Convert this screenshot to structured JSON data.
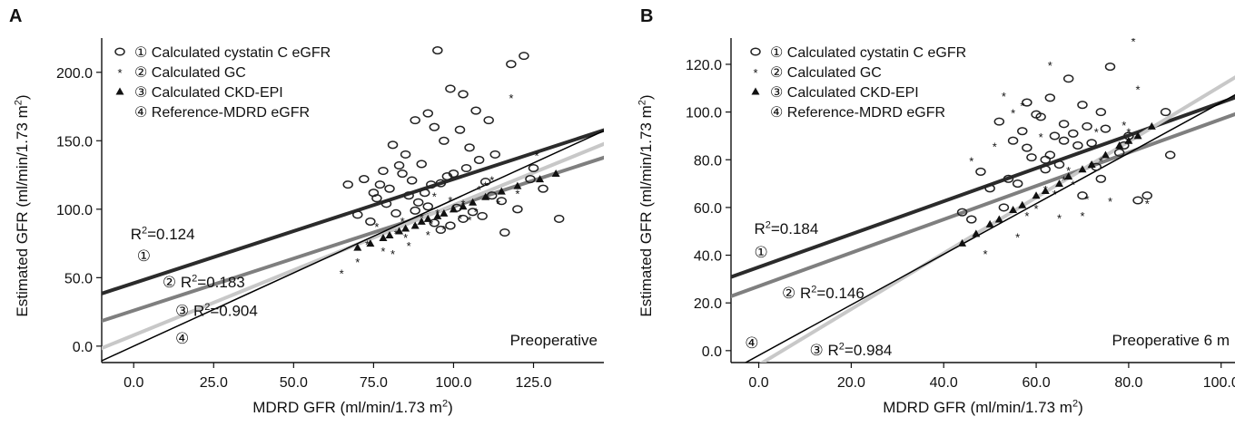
{
  "chart_data": [
    {
      "type": "scatter",
      "panel_label": "A",
      "title": "",
      "annotation": "Preoperative",
      "xlabel": "MDRD GFR (ml/min/1.73 m²)",
      "ylabel": "Estimated GFR (ml/min/1.73 m²)",
      "xlim": [
        -10,
        147
      ],
      "ylim": [
        -12,
        225
      ],
      "xticks": [
        0,
        25,
        50,
        75,
        100,
        125
      ],
      "xtick_labels": [
        "0.0",
        "25.0",
        "50.0",
        "75.0",
        "100.0",
        "125.0"
      ],
      "yticks": [
        0,
        50,
        100,
        150,
        200
      ],
      "ytick_labels": [
        "0.0",
        "50.0",
        "100.0",
        "150.0",
        "200.0"
      ],
      "legend": {
        "position": "top-left",
        "entries": [
          {
            "marker": "circle",
            "label": "① Calculated cystatin C eGFR"
          },
          {
            "marker": "star",
            "label": "② Calculated GC"
          },
          {
            "marker": "triangle",
            "label": "③ Calculated  CKD-EPI"
          },
          {
            "marker": "none",
            "label": "④ Reference-MDRD eGFR"
          }
        ]
      },
      "regression_lines": [
        {
          "id": "1",
          "intercept": 46,
          "slope": 0.76,
          "color": "#2b2b2b",
          "width": 4
        },
        {
          "id": "2",
          "intercept": 26,
          "slope": 0.76,
          "color": "#7f7f7f",
          "width": 4
        },
        {
          "id": "3",
          "intercept": 8,
          "slope": 0.95,
          "color": "#c8c8c8",
          "width": 4
        },
        {
          "id": "4",
          "intercept": 0,
          "slope": 1.07,
          "color": "#000000",
          "width": 1.5
        }
      ],
      "line_labels": [
        {
          "text": "R²=0.124",
          "x": -1,
          "y": 78
        },
        {
          "text": "①",
          "x": 1,
          "y": 62
        },
        {
          "text": "② R²=0.183",
          "x": 9,
          "y": 43
        },
        {
          "text": "③ R²=0.904",
          "x": 13,
          "y": 22
        },
        {
          "text": "④",
          "x": 13,
          "y": 2
        }
      ],
      "series": [
        {
          "name": "① Calculated cystatin C eGFR",
          "marker": "circle",
          "x": [
            95,
            118,
            122,
            103,
            99,
            88,
            92,
            107,
            81,
            94,
            102,
            111,
            85,
            90,
            97,
            105,
            78,
            83,
            87,
            93,
            100,
            113,
            125,
            133,
            67,
            72,
            76,
            80,
            84,
            86,
            89,
            91,
            96,
            98,
            101,
            104,
            106,
            109,
            112,
            115,
            120,
            75,
            79,
            82,
            94,
            99,
            103,
            96,
            92,
            88,
            70,
            74,
            77,
            110,
            116,
            108,
            124,
            128
          ],
          "y": [
            216,
            206,
            212,
            184,
            188,
            165,
            170,
            172,
            147,
            160,
            158,
            165,
            140,
            133,
            150,
            145,
            128,
            132,
            121,
            118,
            126,
            140,
            130,
            93,
            118,
            122,
            108,
            115,
            126,
            110,
            105,
            112,
            119,
            124,
            101,
            130,
            98,
            95,
            110,
            106,
            100,
            112,
            104,
            97,
            90,
            88,
            93,
            85,
            102,
            99,
            96,
            91,
            118,
            120,
            83,
            136,
            122,
            115
          ]
        },
        {
          "name": "② Calculated GC",
          "marker": "star",
          "x": [
            65,
            70,
            73,
            78,
            82,
            85,
            88,
            90,
            93,
            95,
            97,
            100,
            103,
            105,
            108,
            110,
            114,
            118,
            126,
            120,
            81,
            84,
            92,
            99,
            102,
            107,
            76,
            86,
            94,
            112
          ],
          "y": [
            54,
            62,
            75,
            70,
            83,
            80,
            88,
            95,
            90,
            98,
            86,
            100,
            105,
            93,
            115,
            118,
            105,
            182,
            140,
            112,
            68,
            92,
            82,
            107,
            94,
            99,
            88,
            74,
            110,
            122
          ]
        },
        {
          "name": "③ Calculated  CKD-EPI",
          "marker": "triangle",
          "x": [
            70,
            74,
            78,
            80,
            83,
            85,
            88,
            90,
            92,
            95,
            97,
            100,
            103,
            106,
            110,
            115,
            120,
            127,
            132
          ],
          "y": [
            72,
            75,
            79,
            81,
            84,
            86,
            88,
            91,
            93,
            95,
            97,
            100,
            102,
            105,
            109,
            113,
            117,
            122,
            126
          ]
        }
      ]
    },
    {
      "type": "scatter",
      "panel_label": "B",
      "title": "",
      "annotation": "Preoperative 6 m",
      "xlabel": "MDRD GFR (ml/min/1.73 m²)",
      "ylabel": "Estimated GFR (ml/min/1.73 m²)",
      "xlim": [
        -6,
        103
      ],
      "ylim": [
        -5,
        131
      ],
      "xticks": [
        0,
        20,
        40,
        60,
        80,
        100
      ],
      "xtick_labels": [
        "0.0",
        "20.0",
        "40.0",
        "60.0",
        "80.0",
        "100.0"
      ],
      "yticks": [
        0,
        20,
        40,
        60,
        80,
        100,
        120
      ],
      "ytick_labels": [
        "0.0",
        "20.0",
        "40.0",
        "60.0",
        "80.0",
        "100.0",
        "120.0"
      ],
      "legend": {
        "position": "top-left",
        "entries": [
          {
            "marker": "circle",
            "label": "① Calculated cystatin C eGFR"
          },
          {
            "marker": "star",
            "label": "② Calculated GC"
          },
          {
            "marker": "triangle",
            "label": "③ Calculated  CKD-EPI"
          },
          {
            "marker": "none",
            "label": "④ Reference-MDRD eGFR"
          }
        ]
      },
      "regression_lines": [
        {
          "id": "1",
          "intercept": 35,
          "slope": 0.69,
          "color": "#2b2b2b",
          "width": 4
        },
        {
          "id": "2",
          "intercept": 27,
          "slope": 0.7,
          "color": "#7f7f7f",
          "width": 4
        },
        {
          "id": "3",
          "intercept": -6,
          "slope": 1.17,
          "color": "#c8c8c8",
          "width": 4
        },
        {
          "id": "4",
          "intercept": -2,
          "slope": 1.06,
          "color": "#000000",
          "width": 1.5
        }
      ],
      "line_labels": [
        {
          "text": "R²=0.184",
          "x": -1,
          "y": 49
        },
        {
          "text": "①",
          "x": -1,
          "y": 39
        },
        {
          "text": "② R²=0.146",
          "x": 5,
          "y": 22
        },
        {
          "text": "③ R²=0.984",
          "x": 11,
          "y": -2
        },
        {
          "text": "④",
          "x": -3,
          "y": 1
        }
      ],
      "series": [
        {
          "name": "① Calculated cystatin C eGFR",
          "marker": "circle",
          "x": [
            67,
            76,
            88,
            89,
            44,
            48,
            50,
            52,
            54,
            55,
            57,
            58,
            60,
            61,
            62,
            63,
            64,
            65,
            66,
            68,
            69,
            70,
            71,
            72,
            73,
            74,
            75,
            78,
            80,
            82,
            84,
            46,
            53,
            56,
            59,
            62,
            66,
            70,
            74,
            79,
            58,
            63
          ],
          "y": [
            114,
            119,
            100,
            82,
            58,
            75,
            68,
            96,
            72,
            88,
            92,
            85,
            99,
            98,
            80,
            106,
            90,
            78,
            95,
            91,
            86,
            103,
            94,
            87,
            77,
            100,
            93,
            83,
            90,
            63,
            65,
            55,
            60,
            70,
            81,
            76,
            88,
            65,
            72,
            86,
            104,
            82
          ]
        },
        {
          "name": "② Calculated GC",
          "marker": "star",
          "x": [
            81,
            63,
            49,
            51,
            53,
            56,
            58,
            60,
            62,
            64,
            66,
            68,
            70,
            72,
            74,
            76,
            78,
            80,
            82,
            84,
            46,
            55,
            61,
            67,
            73,
            79,
            57,
            65,
            71
          ],
          "y": [
            130,
            120,
            41,
            86,
            107,
            48,
            57,
            60,
            68,
            66,
            72,
            70,
            57,
            78,
            80,
            63,
            85,
            92,
            110,
            62,
            80,
            100,
            90,
            76,
            92,
            95,
            103,
            56,
            64
          ]
        },
        {
          "name": "③ Calculated  CKD-EPI",
          "marker": "triangle",
          "x": [
            44,
            47,
            50,
            52,
            55,
            57,
            60,
            62,
            65,
            67,
            70,
            72,
            75,
            78,
            80,
            82,
            85
          ],
          "y": [
            45,
            49,
            53,
            55,
            59,
            61,
            65,
            67,
            70,
            73,
            76,
            78,
            82,
            86,
            88,
            90,
            94
          ]
        }
      ]
    }
  ]
}
